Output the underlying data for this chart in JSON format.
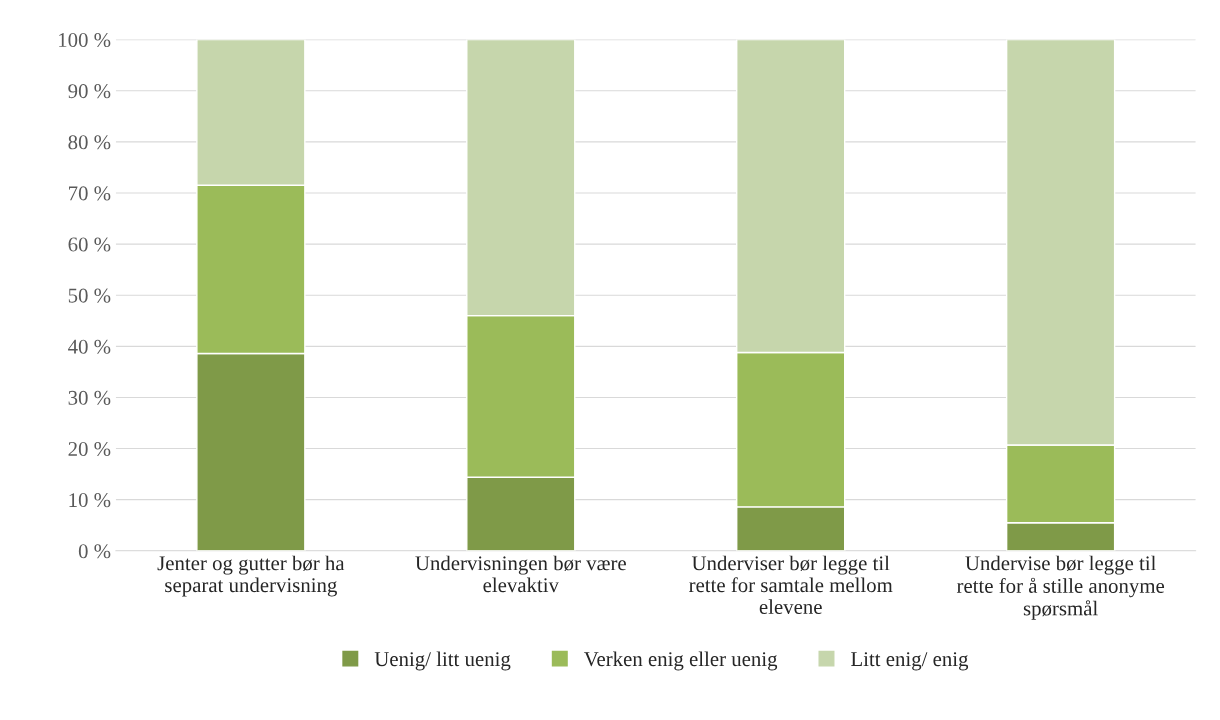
{
  "chart_data": {
    "type": "bar",
    "stacked": true,
    "categories": [
      "Jenter og gutter bør ha separat undervisning",
      "Undervisningen bør være elevaktiv",
      "Underviser bør legge til rette for samtale mellom elevene",
      "Undervise bør legge til rette for å stille anonyme spørsmål"
    ],
    "series": [
      {
        "name": "Uenig/ litt uenig",
        "color": "#7f9a48",
        "values": [
          38.6,
          14.4,
          8.6,
          5.5
        ]
      },
      {
        "name": "Verken enig eller uenig",
        "color": "#9bbb59",
        "values": [
          32.9,
          31.6,
          30.2,
          15.2
        ]
      },
      {
        "name": "Litt enig/ enig",
        "color": "#c6d6ac",
        "values": [
          28.5,
          54.0,
          61.2,
          79.3
        ]
      }
    ],
    "ylim": [
      0,
      100
    ],
    "yticks": [
      {
        "value": 0,
        "label": "0 %"
      },
      {
        "value": 10,
        "label": "10 %"
      },
      {
        "value": 20,
        "label": "20 %"
      },
      {
        "value": 30,
        "label": "30 %"
      },
      {
        "value": 40,
        "label": "40 %"
      },
      {
        "value": 50,
        "label": "50 %"
      },
      {
        "value": 60,
        "label": "60 %"
      },
      {
        "value": 70,
        "label": "70 %"
      },
      {
        "value": 80,
        "label": "80 %"
      },
      {
        "value": 90,
        "label": "90 %"
      },
      {
        "value": 100,
        "label": "100 %"
      }
    ],
    "grid": "y",
    "legend": "bottom"
  }
}
